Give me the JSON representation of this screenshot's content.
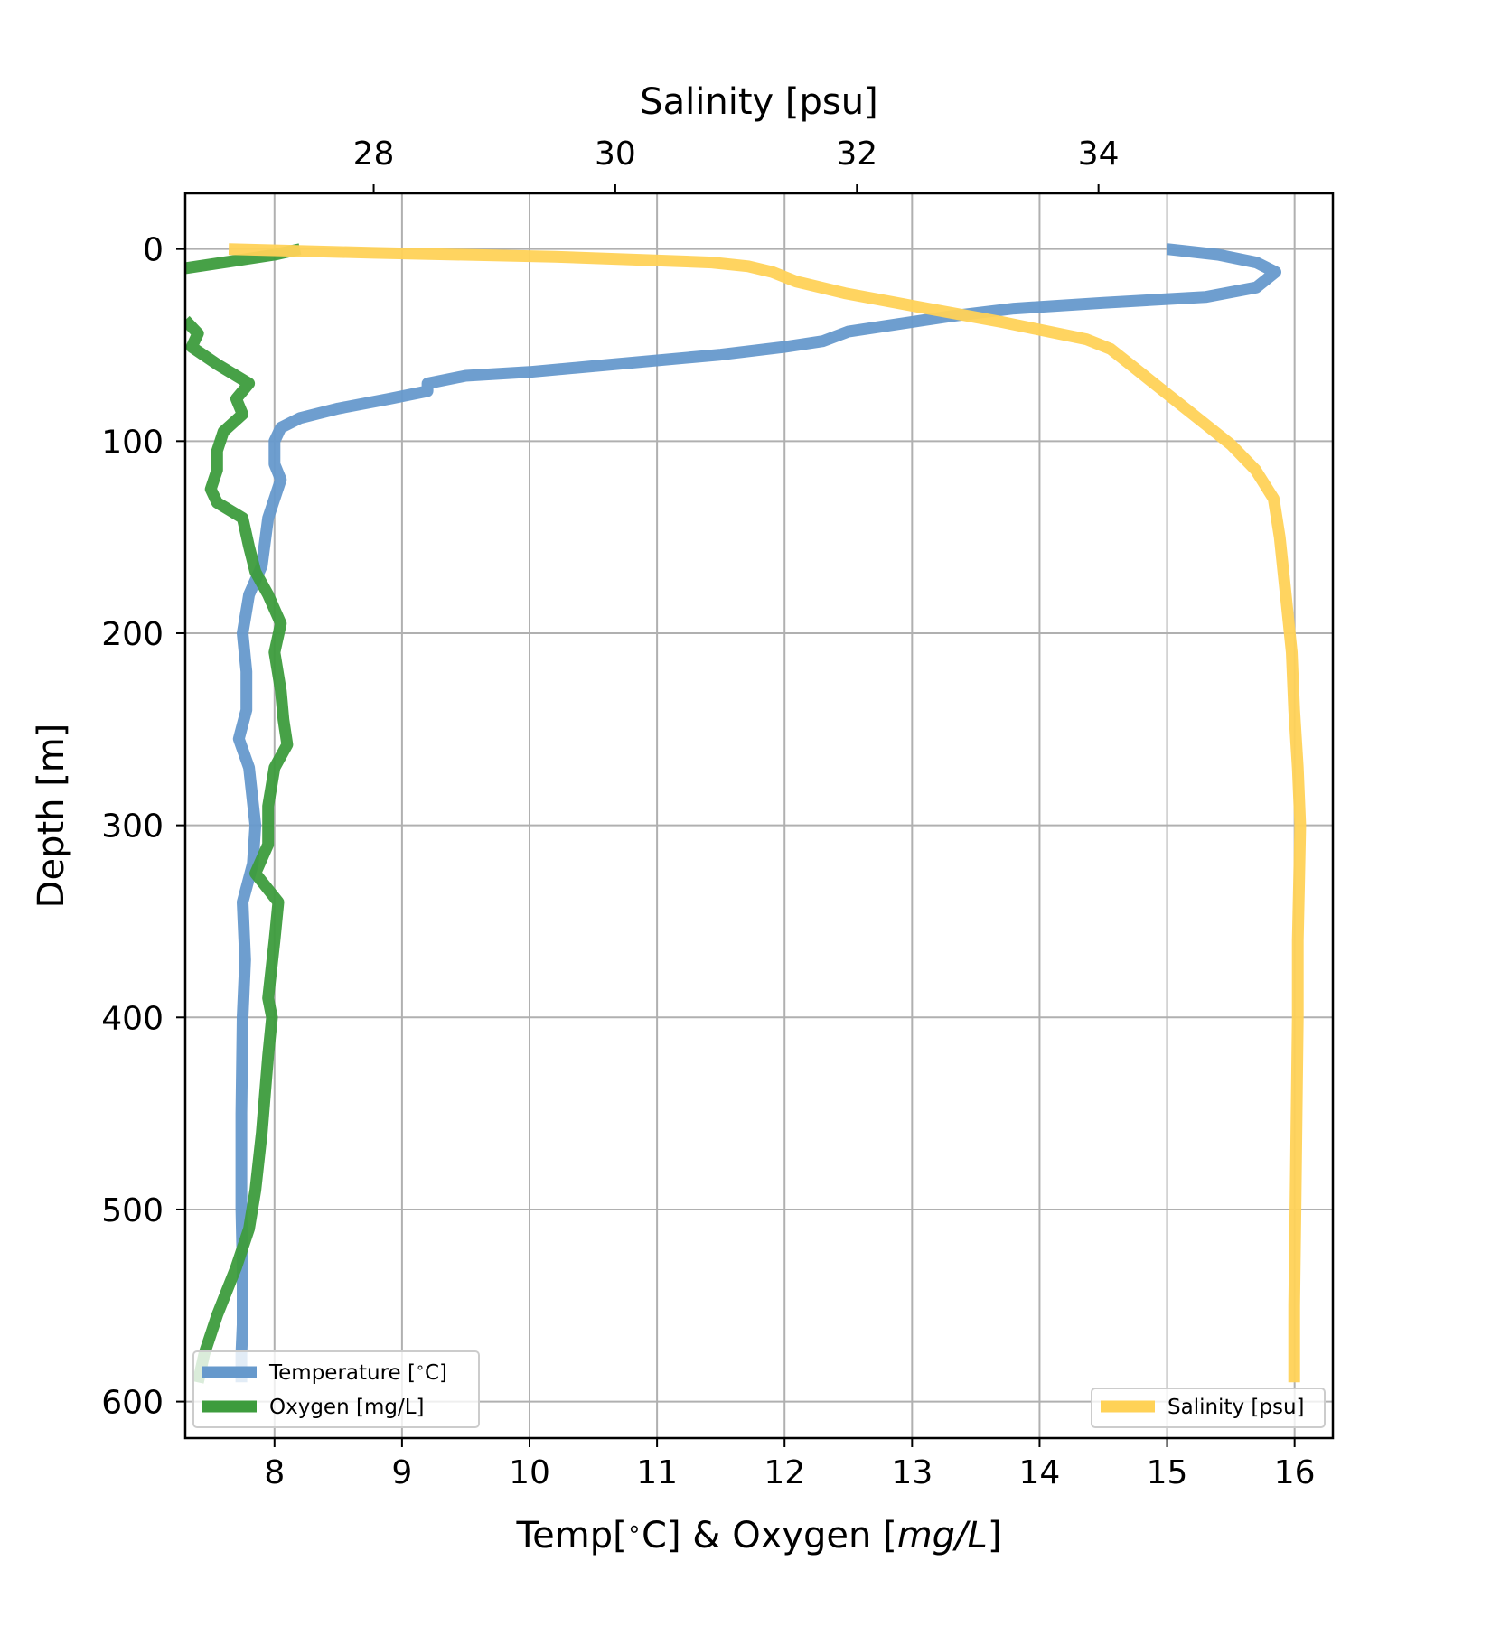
{
  "chart_data": {
    "type": "line",
    "xlabel_bottom": "Temp[$^\\circ$C] & Oxygen [$mg/L$]",
    "xlabel_bottom_parts": [
      "Temp[",
      "∘",
      "C] & Oxygen [",
      "mg/L",
      "]"
    ],
    "xlabel_top": "Salinity [psu]",
    "ylabel": "Depth [m]",
    "xlim_bottom": [
      7.3,
      16.3
    ],
    "xlim_top": [
      26.44,
      35.94
    ],
    "ylim": [
      619,
      -29
    ],
    "y_inverted": true,
    "grid": true,
    "bottom_ticks": [
      "8",
      "9",
      "10",
      "11",
      "12",
      "13",
      "14",
      "15",
      "16"
    ],
    "top_ticks": [
      "28",
      "30",
      "32",
      "34"
    ],
    "y_ticks": [
      "0",
      "100",
      "200",
      "300",
      "400",
      "500",
      "600"
    ],
    "legends": [
      {
        "placement": "lower-left",
        "entries": [
          {
            "label_parts": [
              "Temperature [",
              "∘",
              "C]"
            ],
            "color": "#6699cc"
          },
          {
            "label": "Oxygen [mg/L]",
            "color": "#3d9c3d"
          }
        ]
      },
      {
        "placement": "lower-right",
        "entries": [
          {
            "label": "Salinity [psu]",
            "color": "#ffd257"
          }
        ]
      }
    ],
    "series": [
      {
        "name": "Temperature [$^\\circ$C]",
        "axis": "bottom",
        "color": "#6699cc",
        "points": [
          [
            15.0,
            0
          ],
          [
            15.4,
            3
          ],
          [
            15.7,
            7
          ],
          [
            15.85,
            12
          ],
          [
            15.7,
            20
          ],
          [
            15.3,
            25
          ],
          [
            14.5,
            28
          ],
          [
            13.8,
            31
          ],
          [
            13.3,
            35
          ],
          [
            12.9,
            39
          ],
          [
            12.5,
            43
          ],
          [
            12.3,
            48
          ],
          [
            12.0,
            51
          ],
          [
            11.5,
            55
          ],
          [
            10.5,
            61
          ],
          [
            10.0,
            64
          ],
          [
            9.5,
            66
          ],
          [
            9.2,
            70
          ],
          [
            9.2,
            74
          ],
          [
            8.9,
            78
          ],
          [
            8.5,
            83
          ],
          [
            8.2,
            88
          ],
          [
            8.05,
            93
          ],
          [
            8.0,
            100
          ],
          [
            8.0,
            112
          ],
          [
            8.05,
            120
          ],
          [
            7.95,
            140
          ],
          [
            7.9,
            165
          ],
          [
            7.8,
            180
          ],
          [
            7.75,
            200
          ],
          [
            7.78,
            220
          ],
          [
            7.78,
            240
          ],
          [
            7.72,
            255
          ],
          [
            7.8,
            270
          ],
          [
            7.85,
            300
          ],
          [
            7.83,
            320
          ],
          [
            7.75,
            340
          ],
          [
            7.77,
            370
          ],
          [
            7.75,
            400
          ],
          [
            7.74,
            450
          ],
          [
            7.74,
            500
          ],
          [
            7.75,
            530
          ],
          [
            7.75,
            560
          ],
          [
            7.74,
            575
          ],
          [
            7.74,
            590
          ]
        ]
      },
      {
        "name": "Oxygen [mg/L]",
        "axis": "bottom",
        "color": "#3d9c3d",
        "points": [
          [
            7.3,
            10
          ],
          [
            7.6,
            7
          ],
          [
            8.0,
            3
          ],
          [
            8.2,
            0
          ],
          null,
          [
            7.3,
            37
          ],
          [
            7.4,
            44
          ],
          [
            7.35,
            51
          ],
          [
            7.55,
            60
          ],
          [
            7.7,
            66
          ],
          [
            7.8,
            70
          ],
          [
            7.7,
            78
          ],
          [
            7.75,
            86
          ],
          [
            7.6,
            95
          ],
          [
            7.55,
            105
          ],
          [
            7.55,
            115
          ],
          [
            7.5,
            125
          ],
          [
            7.55,
            132
          ],
          [
            7.75,
            140
          ],
          [
            7.8,
            155
          ],
          [
            7.85,
            168
          ],
          [
            7.95,
            180
          ],
          [
            8.05,
            195
          ],
          [
            8.0,
            210
          ],
          [
            8.05,
            230
          ],
          [
            8.07,
            245
          ],
          [
            8.1,
            258
          ],
          [
            8.0,
            270
          ],
          [
            7.95,
            290
          ],
          [
            7.95,
            310
          ],
          [
            7.85,
            325
          ],
          [
            8.03,
            340
          ],
          [
            8.0,
            360
          ],
          [
            7.95,
            390
          ],
          [
            7.98,
            400
          ],
          [
            7.95,
            420
          ],
          [
            7.9,
            460
          ],
          [
            7.85,
            490
          ],
          [
            7.8,
            510
          ],
          [
            7.7,
            530
          ],
          [
            7.55,
            555
          ],
          [
            7.45,
            575
          ],
          [
            7.4,
            590
          ]
        ]
      },
      {
        "name": "Salinity [psu]",
        "axis": "top",
        "color": "#ffd257",
        "points": [
          [
            26.8,
            0
          ],
          [
            28.0,
            2
          ],
          [
            29.5,
            4
          ],
          [
            30.8,
            7
          ],
          [
            31.1,
            9
          ],
          [
            31.3,
            12
          ],
          [
            31.5,
            17
          ],
          [
            31.9,
            23
          ],
          [
            32.5,
            30
          ],
          [
            33.2,
            38
          ],
          [
            33.9,
            47
          ],
          [
            34.1,
            52
          ],
          [
            34.3,
            62
          ],
          [
            34.5,
            72
          ],
          [
            34.7,
            82
          ],
          [
            34.9,
            92
          ],
          [
            35.1,
            102
          ],
          [
            35.3,
            115
          ],
          [
            35.45,
            130
          ],
          [
            35.5,
            150
          ],
          [
            35.55,
            180
          ],
          [
            35.6,
            210
          ],
          [
            35.62,
            240
          ],
          [
            35.65,
            270
          ],
          [
            35.67,
            300
          ],
          [
            35.66,
            330
          ],
          [
            35.65,
            360
          ],
          [
            35.65,
            400
          ],
          [
            35.64,
            450
          ],
          [
            35.63,
            500
          ],
          [
            35.62,
            550
          ],
          [
            35.62,
            590
          ]
        ]
      }
    ]
  }
}
